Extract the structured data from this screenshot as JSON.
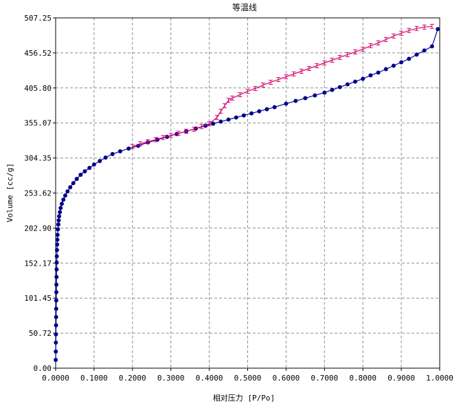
{
  "chart_data": {
    "type": "line",
    "title": "等温线",
    "xlabel": "相对压力 [P/Po]",
    "ylabel": "Volume [cc/g]",
    "xlim": [
      0,
      1
    ],
    "ylim": [
      0,
      507.25
    ],
    "x_ticks": [
      "0.0000",
      "0.1000",
      "0.2000",
      "0.3000",
      "0.4000",
      "0.5000",
      "0.6000",
      "0.7000",
      "0.8000",
      "0.9000",
      "1.0000"
    ],
    "y_ticks": [
      "0.00",
      "50.72",
      "101.45",
      "152.17",
      "202.90",
      "253.62",
      "304.35",
      "355.07",
      "405.80",
      "456.52",
      "507.25"
    ],
    "grid": true,
    "colors": {
      "adsorption": "#00008b",
      "desorption": "#d6006e",
      "frame": "#000000",
      "grid": "#8c8c8c"
    },
    "series": [
      {
        "role": "adsorption",
        "marker": "circle",
        "x": [
          0.0002,
          0.0004,
          0.0006,
          0.0008,
          0.001,
          0.0012,
          0.0014,
          0.0016,
          0.0018,
          0.002,
          0.0022,
          0.0025,
          0.0028,
          0.0031,
          0.0035,
          0.004,
          0.0045,
          0.005,
          0.006,
          0.007,
          0.008,
          0.009,
          0.011,
          0.013,
          0.016,
          0.02,
          0.025,
          0.031,
          0.038,
          0.046,
          0.055,
          0.065,
          0.076,
          0.088,
          0.1,
          0.115,
          0.13,
          0.148,
          0.168,
          0.19,
          0.215,
          0.24,
          0.265,
          0.29,
          0.315,
          0.34,
          0.365,
          0.39,
          0.41,
          0.43,
          0.45,
          0.47,
          0.49,
          0.51,
          0.53,
          0.55,
          0.57,
          0.6,
          0.625,
          0.65,
          0.675,
          0.7,
          0.72,
          0.74,
          0.76,
          0.78,
          0.8,
          0.82,
          0.84,
          0.86,
          0.88,
          0.9,
          0.92,
          0.94,
          0.96,
          0.98,
          0.995
        ],
        "y": [
          12,
          24,
          37,
          49,
          62,
          74,
          86,
          98,
          110,
          121,
          132,
          143,
          153,
          162,
          171,
          179,
          186,
          193,
          201,
          208,
          214,
          220,
          226,
          232,
          238,
          244,
          250,
          256,
          262,
          268,
          274,
          280,
          285,
          290,
          295,
          300,
          305,
          310,
          314,
          318,
          322,
          327,
          331,
          335,
          339,
          343,
          347,
          351,
          354,
          357,
          360,
          363,
          366,
          369,
          372,
          375,
          378,
          383,
          387,
          391,
          395,
          399,
          403,
          407,
          411,
          415,
          419,
          424,
          428,
          433,
          438,
          443,
          448,
          454,
          460,
          466,
          491
        ]
      },
      {
        "role": "desorption",
        "marker": "bar",
        "x": [
          0.98,
          0.96,
          0.94,
          0.92,
          0.9,
          0.88,
          0.86,
          0.84,
          0.82,
          0.8,
          0.78,
          0.76,
          0.74,
          0.72,
          0.7,
          0.68,
          0.66,
          0.64,
          0.62,
          0.6,
          0.58,
          0.56,
          0.54,
          0.52,
          0.5,
          0.48,
          0.46,
          0.45,
          0.44,
          0.43,
          0.42,
          0.4,
          0.38,
          0.36,
          0.34,
          0.32,
          0.3,
          0.28,
          0.26,
          0.24,
          0.22,
          0.2
        ],
        "y": [
          495,
          494,
          492,
          489,
          485,
          481,
          476,
          471,
          467,
          462,
          458,
          454,
          450,
          446,
          442,
          438,
          434,
          430,
          426,
          422,
          418,
          414,
          410,
          405,
          401,
          396,
          391,
          388,
          380,
          372,
          363,
          354,
          350,
          346,
          343,
          340,
          337,
          334,
          331,
          328,
          325,
          321
        ]
      }
    ]
  }
}
